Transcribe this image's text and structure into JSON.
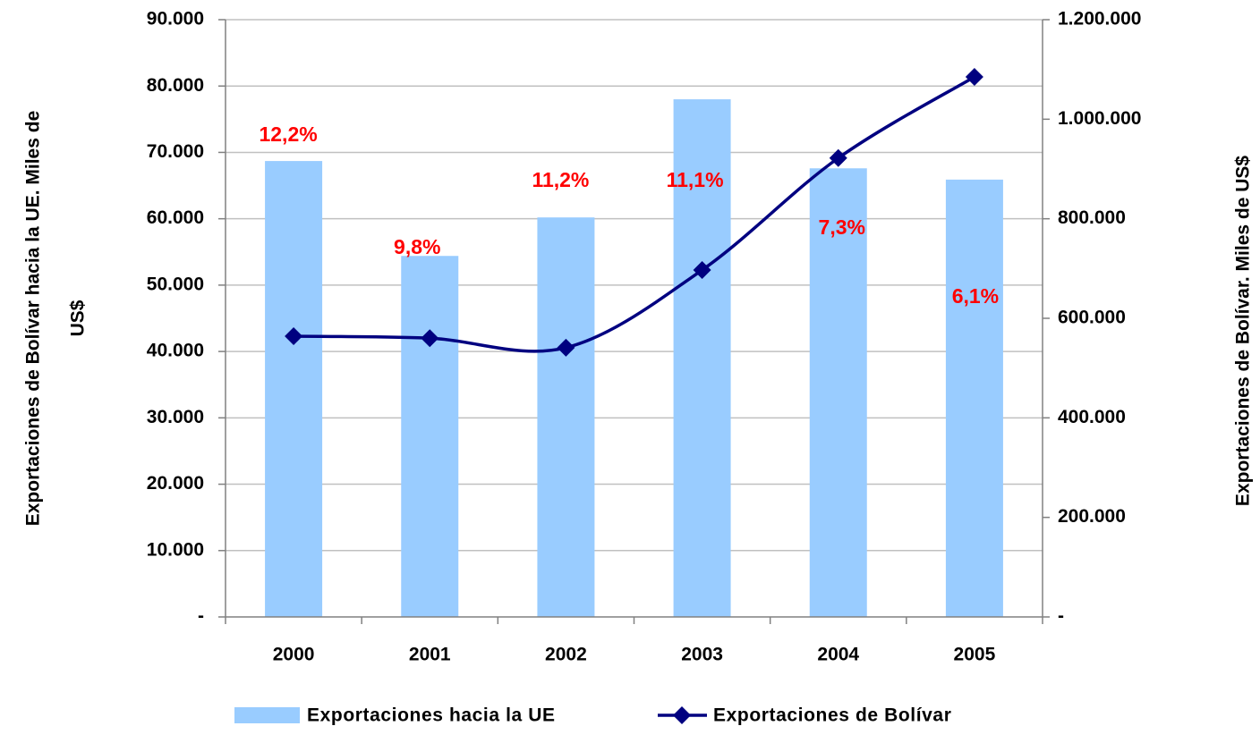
{
  "chart_data": {
    "type": "bar-line",
    "categories": [
      "2000",
      "2001",
      "2002",
      "2003",
      "2004",
      "2005"
    ],
    "series": [
      {
        "name": "Exportaciones hacia la UE",
        "color": "#99ccff",
        "type": "bar",
        "values": [
          68700,
          54400,
          60200,
          78000,
          67600,
          65900
        ]
      },
      {
        "name": "Exportaciones de Bolívar",
        "color": "#000080",
        "type": "line",
        "axis": "y2",
        "values": [
          564000,
          560000,
          541000,
          697000,
          922000,
          1085000
        ]
      }
    ],
    "shares": [
      12.2,
      9.8,
      11.2,
      11.1,
      7.3,
      6.1
    ],
    "share_labels": [
      "12,2%",
      "9,8%",
      "11,2%",
      "11,1%",
      "7,3%",
      "6,1%"
    ],
    "share_color": "#ff0000",
    "ylabel": [
      "Exportaciones de Bolívar hacia la UE. Miles de",
      "US$"
    ],
    "y2label": "Exportaciones de Bolívar. Miles de US$",
    "ylim": [
      0,
      90000
    ],
    "yticks": [
      {
        "value": 0,
        "label": "-"
      },
      {
        "value": 10000,
        "label": "10.000"
      },
      {
        "value": 20000,
        "label": "20.000"
      },
      {
        "value": 30000,
        "label": "30.000"
      },
      {
        "value": 40000,
        "label": "40.000"
      },
      {
        "value": 50000,
        "label": "50.000"
      },
      {
        "value": 60000,
        "label": "60.000"
      },
      {
        "value": 70000,
        "label": "70.000"
      },
      {
        "value": 80000,
        "label": "80.000"
      },
      {
        "value": 90000,
        "label": "90.000"
      }
    ],
    "y2lim": [
      0,
      1200000
    ],
    "y2ticks": [
      {
        "value": 0,
        "label": "-"
      },
      {
        "value": 200000,
        "label": "200.000"
      },
      {
        "value": 400000,
        "label": "400.000"
      },
      {
        "value": 600000,
        "label": "600.000"
      },
      {
        "value": 800000,
        "label": "800.000"
      },
      {
        "value": 1000000,
        "label": "1.000.000"
      },
      {
        "value": 1200000,
        "label": "1.200.000"
      }
    ],
    "grid": true,
    "legend": "bottom"
  }
}
